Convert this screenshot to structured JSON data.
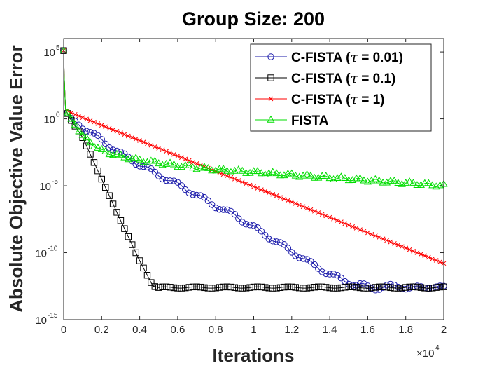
{
  "chart_data": {
    "type": "line",
    "title": "Group Size:  200",
    "xlabel": "Iterations",
    "ylabel": "Absolute Objective Value Error",
    "x_exponent_label": "×10",
    "x_exponent": "4",
    "xlim": [
      0,
      20000
    ],
    "ylim_log10": [
      -15,
      6
    ],
    "x_ticks": [
      {
        "value": 0,
        "label": "0"
      },
      {
        "value": 2000,
        "label": "0.2"
      },
      {
        "value": 4000,
        "label": "0.4"
      },
      {
        "value": 6000,
        "label": "0.6"
      },
      {
        "value": 8000,
        "label": "0.8"
      },
      {
        "value": 10000,
        "label": "1"
      },
      {
        "value": 12000,
        "label": "1.2"
      },
      {
        "value": 14000,
        "label": "1.4"
      },
      {
        "value": 16000,
        "label": "1.6"
      },
      {
        "value": 18000,
        "label": "1.8"
      },
      {
        "value": 20000,
        "label": "2"
      }
    ],
    "y_ticks": [
      {
        "exp": 5,
        "base": "10",
        "sup": "5"
      },
      {
        "exp": 0,
        "base": "10",
        "sup": "0"
      },
      {
        "exp": -5,
        "base": "10",
        "sup": "-5"
      },
      {
        "exp": -10,
        "base": "10",
        "sup": "-10"
      },
      {
        "exp": -15,
        "base": "10",
        "sup": "-15"
      }
    ],
    "legend_position": "top-right",
    "series": [
      {
        "name": "C-FISTA (τ = 0.01)",
        "label_prefix": "C-FISTA (",
        "label_tau": "τ",
        "label_suffix": " = 0.01)",
        "color": "#1a1aaa",
        "marker": "circle",
        "points": [
          [
            0,
            5.1
          ],
          [
            30,
            3.0
          ],
          [
            100,
            0.7
          ],
          [
            300,
            0.15
          ],
          [
            1000,
            -0.6
          ],
          [
            2000,
            -1.6
          ],
          [
            3000,
            -2.6
          ],
          [
            4000,
            -3.4
          ],
          [
            5000,
            -4.2
          ],
          [
            6000,
            -4.9
          ],
          [
            7000,
            -5.7
          ],
          [
            8000,
            -6.5
          ],
          [
            9000,
            -7.2
          ],
          [
            10000,
            -8.1
          ],
          [
            11000,
            -9.0
          ],
          [
            12000,
            -9.9
          ],
          [
            13000,
            -10.8
          ],
          [
            14000,
            -11.6
          ],
          [
            15000,
            -12.2
          ],
          [
            15500,
            -12.5
          ],
          [
            16000,
            -12.55
          ],
          [
            20000,
            -12.6
          ]
        ]
      },
      {
        "name": "C-FISTA (τ = 0.1)",
        "label_prefix": "C-FISTA (",
        "label_tau": "τ",
        "label_suffix": " = 0.1)",
        "color": "#000000",
        "marker": "square",
        "points": [
          [
            0,
            5.1
          ],
          [
            30,
            3.0
          ],
          [
            100,
            0.7
          ],
          [
            300,
            0.1
          ],
          [
            1000,
            -1.4
          ],
          [
            2000,
            -4.5
          ],
          [
            3000,
            -7.6
          ],
          [
            4000,
            -10.6
          ],
          [
            4700,
            -12.5
          ],
          [
            5000,
            -12.6
          ],
          [
            20000,
            -12.6
          ]
        ]
      },
      {
        "name": "C-FISTA (τ = 1)",
        "label_prefix": "C-FISTA (",
        "label_tau": "τ",
        "label_suffix": " = 1)",
        "color": "#ff0000",
        "marker": "x",
        "points": [
          [
            0,
            5.1
          ],
          [
            30,
            3.0
          ],
          [
            100,
            0.7
          ],
          [
            300,
            0.5
          ],
          [
            20000,
            -10.8
          ]
        ]
      },
      {
        "name": "FISTA",
        "label_prefix": "FISTA",
        "label_tau": "",
        "label_suffix": "",
        "color": "#00dd00",
        "marker": "triangle",
        "points": [
          [
            0,
            5.1
          ],
          [
            30,
            3.0
          ],
          [
            100,
            0.7
          ],
          [
            300,
            0.2
          ],
          [
            1000,
            -1.3
          ],
          [
            2000,
            -2.4
          ],
          [
            3000,
            -2.8
          ],
          [
            4000,
            -3.1
          ],
          [
            6000,
            -3.5
          ],
          [
            8000,
            -3.8
          ],
          [
            10000,
            -4.0
          ],
          [
            12000,
            -4.2
          ],
          [
            14000,
            -4.4
          ],
          [
            16000,
            -4.6
          ],
          [
            18000,
            -4.8
          ],
          [
            20000,
            -5.0
          ]
        ]
      }
    ]
  }
}
